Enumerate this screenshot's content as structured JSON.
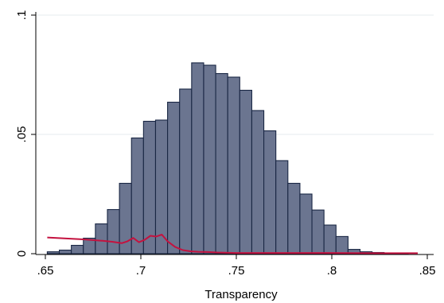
{
  "chart_data": {
    "type": "bar",
    "title": "",
    "xlabel": "Transparency",
    "ylabel": "",
    "xlim": [
      0.65,
      0.85
    ],
    "ylim": [
      0,
      0.1
    ],
    "x_ticks": [
      0.65,
      0.7,
      0.75,
      0.8,
      0.85
    ],
    "x_tick_labels": [
      ".65",
      ".7",
      ".75",
      ".8",
      ".85"
    ],
    "y_ticks": [
      0,
      0.05,
      0.1
    ],
    "y_tick_labels": [
      "0",
      ".05",
      ".1"
    ],
    "grid": true,
    "bar_color": "#6b7590",
    "bar_edge_color": "#1a2744",
    "line_color": "#c4123f",
    "histogram": {
      "bin_width": 0.0063,
      "bins_start": [
        0.651,
        0.6573,
        0.6636,
        0.6699,
        0.6762,
        0.6825,
        0.6888,
        0.6951,
        0.7014,
        0.7077,
        0.714,
        0.7203,
        0.7266,
        0.7329,
        0.7392,
        0.7455,
        0.7518,
        0.7581,
        0.7644,
        0.7707,
        0.777,
        0.7833,
        0.7896,
        0.7959,
        0.8022,
        0.8085,
        0.8148,
        0.8211,
        0.8274,
        0.8337
      ],
      "values": [
        0.0008,
        0.0015,
        0.0035,
        0.0065,
        0.0125,
        0.0185,
        0.0295,
        0.0485,
        0.0555,
        0.056,
        0.0635,
        0.069,
        0.08,
        0.079,
        0.0755,
        0.074,
        0.0685,
        0.06,
        0.0515,
        0.039,
        0.0295,
        0.025,
        0.0183,
        0.012,
        0.0072,
        0.0018,
        0.0008,
        0.0005,
        0.0003,
        0.0003
      ]
    },
    "line_series": {
      "x": [
        0.651,
        0.66,
        0.67,
        0.68,
        0.685,
        0.69,
        0.693,
        0.696,
        0.699,
        0.702,
        0.705,
        0.708,
        0.711,
        0.714,
        0.718,
        0.722,
        0.726,
        0.73,
        0.735,
        0.74,
        0.75,
        0.76,
        0.78,
        0.8,
        0.82,
        0.845
      ],
      "y": [
        0.0068,
        0.0064,
        0.006,
        0.0054,
        0.005,
        0.0044,
        0.0052,
        0.0066,
        0.0048,
        0.0058,
        0.0075,
        0.0072,
        0.008,
        0.0052,
        0.0028,
        0.0015,
        0.001,
        0.0008,
        0.0007,
        0.0005,
        0.0003,
        0.0003,
        0.0003,
        0.0003,
        0.0002,
        0.0002
      ]
    }
  }
}
